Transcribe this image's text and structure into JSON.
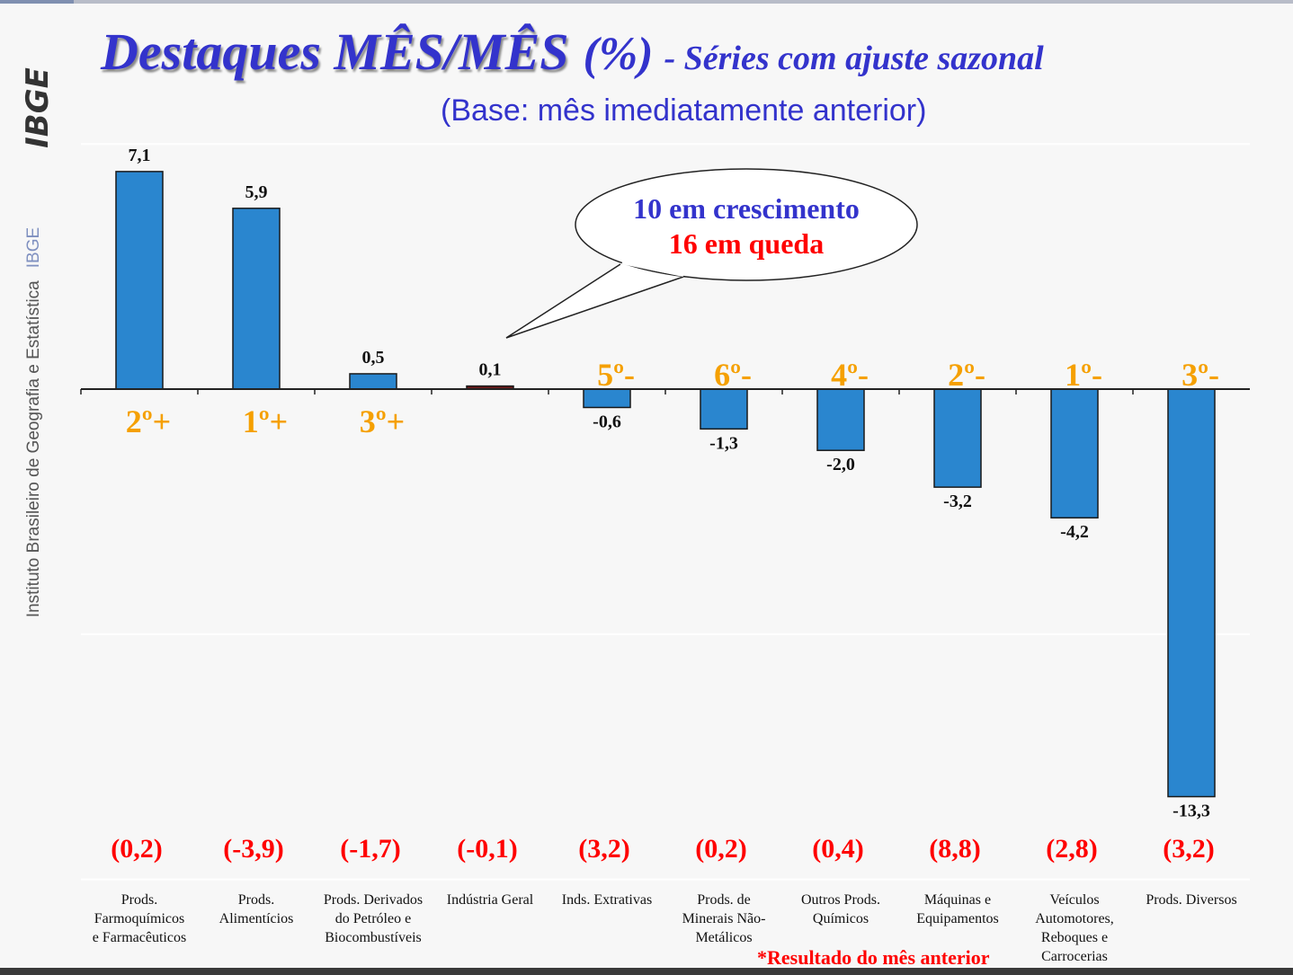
{
  "logo_text": "IBGE",
  "sidebar": {
    "institute": "Instituto Brasileiro de Geografia e Estatística",
    "abbr": "IBGE"
  },
  "title": {
    "main": "Destaques MÊS/MÊS",
    "unit": "(%)",
    "suffix": "- Séries com ajuste sazonal"
  },
  "subtitle": "(Base: mês imediatamente anterior)",
  "callout": {
    "line1": "10 em crescimento",
    "line2": "16 em queda",
    "color1": "#3333cc",
    "color2": "#ff0000"
  },
  "footnote": "*Resultado do mês anterior",
  "chart_data": {
    "type": "bar",
    "categories": [
      "Prods. Farmoquímicos e Farmacêuticos",
      "Prods. Alimentícios",
      "Prods. Derivados do Petróleo e Biocombustíveis",
      "Indústria Geral",
      "Inds. Extrativas",
      "Prods. de Minerais Não-Metálicos",
      "Outros Prods. Químicos",
      "Máquinas e Equipamentos",
      "Veículos Automotores, Reboques e Carrocerias",
      "Prods. Diversos"
    ],
    "category_lines": [
      [
        "Prods.",
        "Farmoquímicos",
        "e Farmacêuticos"
      ],
      [
        "Prods.",
        "Alimentícios"
      ],
      [
        "Prods. Derivados",
        "do Petróleo e",
        "Biocombustíveis"
      ],
      [
        "Indústria Geral"
      ],
      [
        "Inds. Extrativas"
      ],
      [
        "Prods. de",
        "Minerais Não-",
        "Metálicos"
      ],
      [
        "Outros Prods.",
        "Químicos"
      ],
      [
        "Máquinas e",
        "Equipamentos"
      ],
      [
        "Veículos",
        "Automotores,",
        "Reboques e",
        "Carrocerias"
      ],
      [
        "Prods. Diversos"
      ]
    ],
    "values": [
      7.1,
      5.9,
      0.5,
      0.1,
      -0.6,
      -1.3,
      -2.0,
      -3.2,
      -4.2,
      -13.3
    ],
    "value_labels": [
      "7,1",
      "5,9",
      "0,5",
      "0,1",
      "-0,6",
      "-1,3",
      "-2,0",
      "-3,2",
      "-4,2",
      "-13,3"
    ],
    "ranks": [
      "2º+",
      "1º+",
      "3º+",
      "",
      "5º-",
      "6º-",
      "4º-",
      "2º-",
      "1º-",
      "3º-"
    ],
    "previous_month": [
      "(0,2)",
      "(-3,9)",
      "(-1,7)",
      "(-0,1)",
      "(3,2)",
      "(0,2)",
      "(0,4)",
      "(8,8)",
      "(2,8)",
      "(3,2)"
    ],
    "ylim": [
      -16,
      8
    ],
    "grid": true,
    "colors": {
      "bar": "#2a86cf",
      "highlight_bar": "#6b1a1a",
      "rank": "#f5a000",
      "previous": "#ff0000"
    }
  }
}
